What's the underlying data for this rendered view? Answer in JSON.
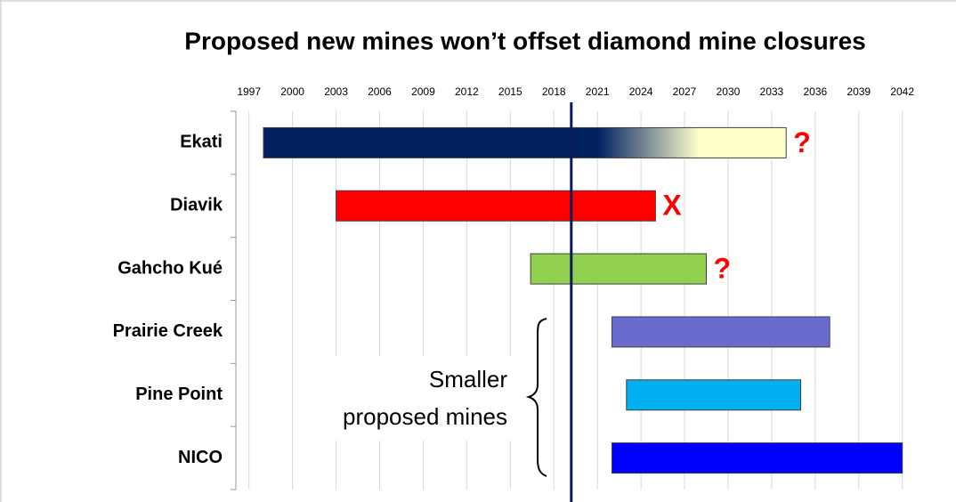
{
  "chart_data": {
    "type": "gantt",
    "title": "Proposed new mines won’t offset diamond mine closures",
    "categories": [
      "Ekati",
      "Diavik",
      "Gahcho Kué",
      "Prairie Creek",
      "Pine Point",
      "NICO"
    ],
    "start": [
      1998,
      2003,
      2016.4,
      2022,
      2023,
      2022
    ],
    "end": [
      2034,
      2025,
      2028.5,
      2037,
      2035,
      2042
    ],
    "colors": [
      "#002060",
      "#ff0000",
      "#92d050",
      "#6b6bcf",
      "#00b0f0",
      "#0000ff"
    ],
    "gradient": {
      "row": 0,
      "from": 2021,
      "to": 2028,
      "color": "#ffffcc"
    },
    "xlim": [
      1996.1,
      2043
    ],
    "xticks": [
      1997,
      2000,
      2003,
      2006,
      2009,
      2012,
      2015,
      2018,
      2021,
      2024,
      2027,
      2030,
      2033,
      2036,
      2039,
      2042
    ],
    "grid": true,
    "marker_line": 2019.2,
    "marker_color": "#0b1a5c",
    "annotations": [
      {
        "text": "?",
        "row": 0
      },
      {
        "text": "X",
        "row": 1
      },
      {
        "text": "?",
        "row": 2
      }
    ],
    "annotation_color": "#ff0000",
    "brace_text": [
      "Smaller",
      "proposed mines"
    ]
  }
}
